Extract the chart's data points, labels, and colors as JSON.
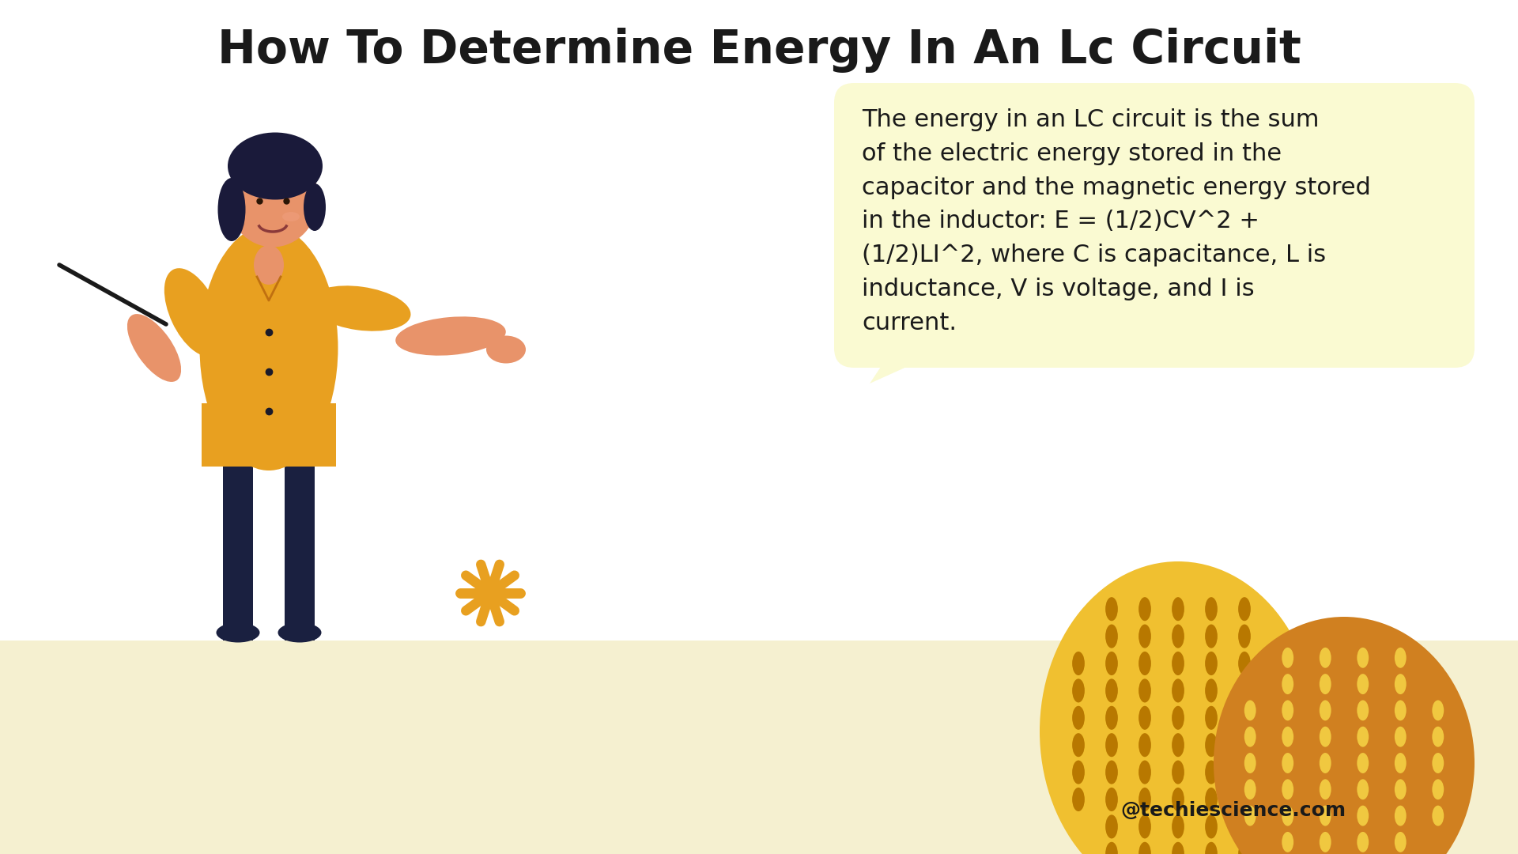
{
  "title": "How To Determine Energy In An Lc Circuit",
  "body_text": "The energy in an LC circuit is the sum\nof the electric energy stored in the\ncapacitor and the magnetic energy stored\nin the inductor: E = (1/2)CV^2 +\n(1/2)LI^2, where C is capacitance, L is\ninductance, V is voltage, and I is\ncurrent.",
  "watermark": "@techiescience.com",
  "bg_color": "#FFFFFF",
  "floor_color": "#F5F0D0",
  "bubble_color": "#FAFAD2",
  "title_fontsize": 42,
  "body_fontsize": 22,
  "watermark_fontsize": 18,
  "person_shirt_color": "#E8A020",
  "person_pants_color": "#1A2040",
  "person_skin_color": "#E8936A",
  "person_hair_color": "#1A1A3A",
  "star_color": "#E8A020",
  "blob1_color": "#F0C030",
  "blob2_color": "#D08020",
  "text_color": "#1A1A1A"
}
